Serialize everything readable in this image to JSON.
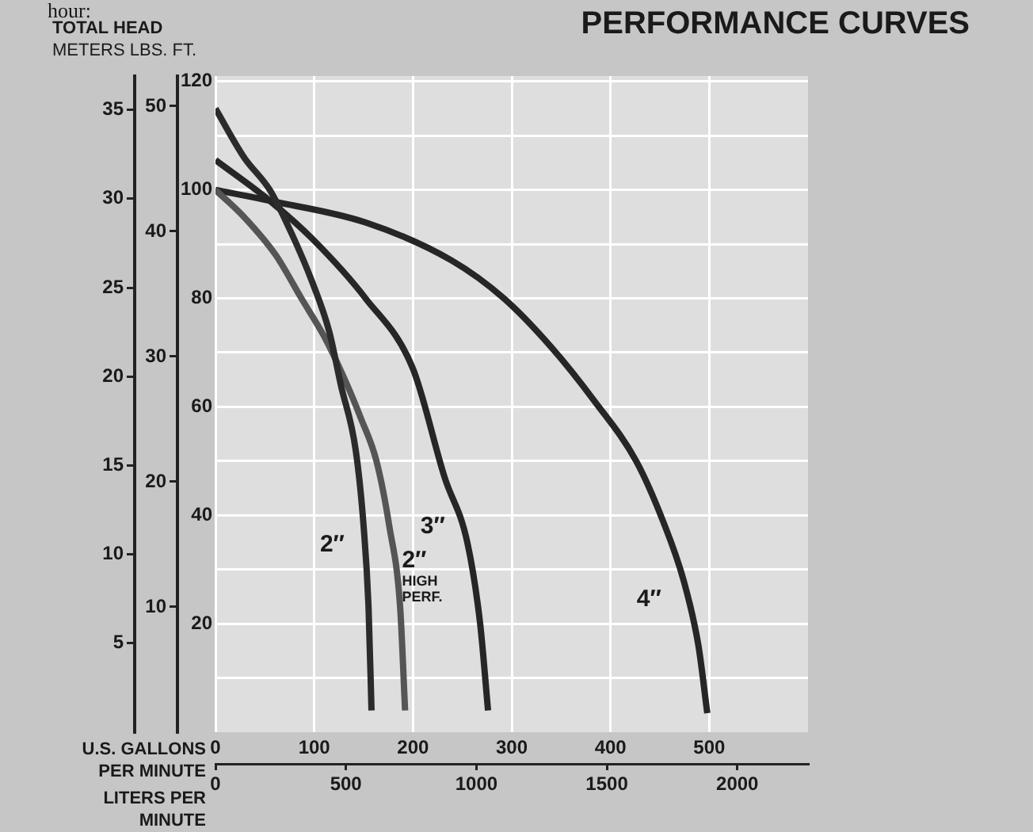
{
  "chart_data": {
    "type": "line",
    "title": "PERFORMANCE CURVES",
    "xlabel": "U.S. GALLONS PER MINUTE",
    "x2label": "LITERS PER MINUTE",
    "ylabel": "FT.",
    "y2label": "LBS.",
    "y3label": "METERS",
    "annotations": [
      "hour:",
      "TOTAL HEAD"
    ],
    "xlim": [
      0,
      600
    ],
    "xticks": [
      0,
      100,
      200,
      300,
      400,
      500
    ],
    "x2lim": [
      0,
      2271
    ],
    "x2ticks": [
      0,
      500,
      1000,
      1500,
      2000
    ],
    "ylim": [
      0,
      121
    ],
    "yticks": [
      {
        "value": 10,
        "label": null
      },
      20,
      {
        "value": 30,
        "label": null
      },
      40,
      {
        "value": 50,
        "label": null
      },
      60,
      {
        "value": 70,
        "label": null
      },
      80,
      {
        "value": 90,
        "label": null
      },
      100,
      {
        "value": 110,
        "label": null
      },
      120
    ],
    "y2lim": [
      0,
      52.4
    ],
    "y2ticks": [
      10,
      20,
      30,
      40,
      50
    ],
    "y3lim": [
      0,
      36.9
    ],
    "y3ticks": [
      5,
      10,
      15,
      20,
      25,
      30,
      35
    ],
    "grid": true,
    "legend": false,
    "marker": "none",
    "line_style": "solid",
    "series": [
      {
        "name": "2″",
        "color": "#2b2b2b",
        "x": [
          0,
          29,
          55,
          77,
          98,
          115,
          127,
          142,
          150,
          155,
          158
        ],
        "values": [
          115,
          106,
          100,
          92,
          83,
          74,
          64,
          52,
          38,
          23,
          4
        ]
      },
      {
        "name": "2″ HIGH PERF.",
        "color": "#555555",
        "x": [
          0,
          29,
          61,
          87,
          110,
          131,
          147,
          163,
          176,
          187,
          192
        ],
        "values": [
          100,
          95,
          88,
          80,
          73,
          65,
          58,
          50,
          38,
          23,
          4
        ]
      },
      {
        "name": "3″",
        "color": "#262626",
        "x": [
          0,
          55,
          98,
          152,
          200,
          232,
          255,
          268,
          276
        ],
        "values": [
          105.5,
          98,
          91,
          80,
          67,
          47,
          35,
          20,
          4
        ]
      },
      {
        "name": "4″",
        "color": "#262626",
        "x": [
          0,
          55,
          152,
          239,
          292,
          340,
          384,
          426,
          453,
          474,
          489,
          498
        ],
        "values": [
          100,
          98,
          94,
          87,
          80,
          71,
          61,
          50,
          39,
          28,
          16,
          3.5
        ]
      }
    ]
  }
}
